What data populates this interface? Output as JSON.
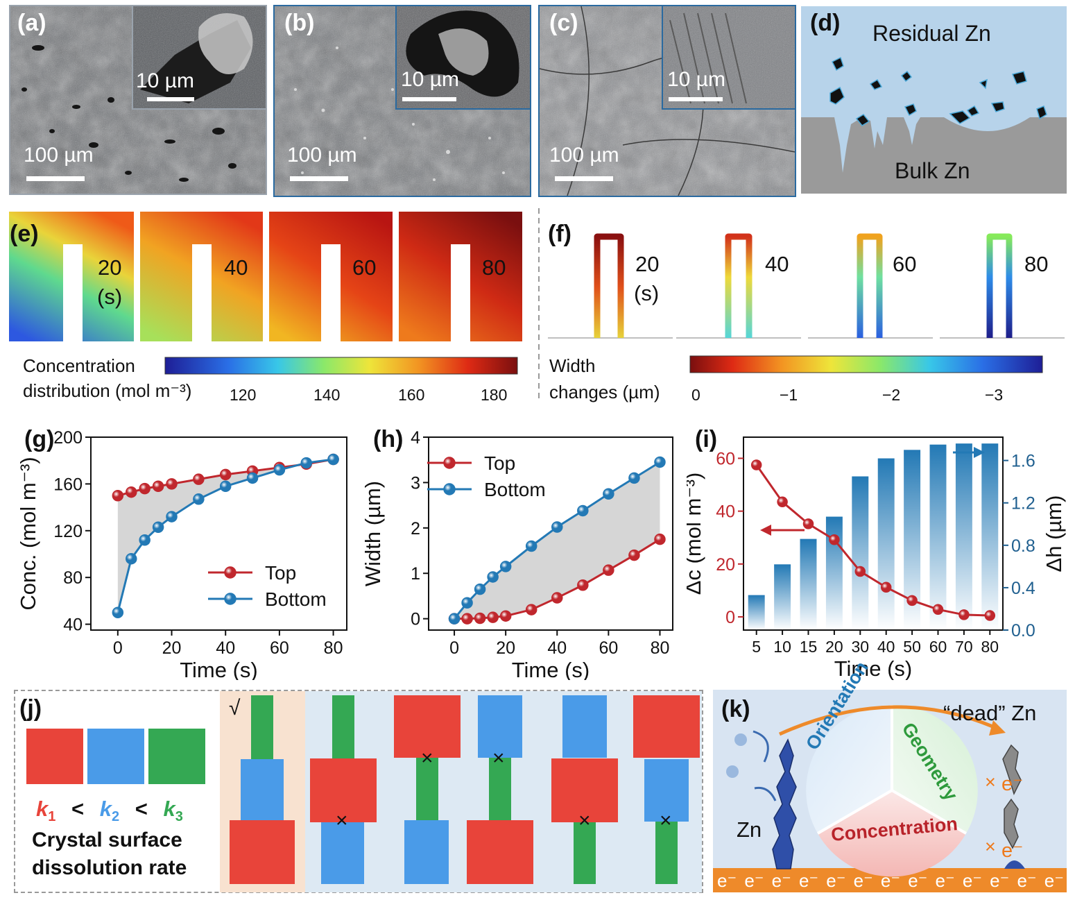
{
  "panels": {
    "a": {
      "label": "(a)",
      "scale_main": "100 µm",
      "scale_inset": "10 µm"
    },
    "b": {
      "label": "(b)",
      "scale_main": "100 µm",
      "scale_inset": "10 µm"
    },
    "c": {
      "label": "(c)",
      "scale_main": "100 µm",
      "scale_inset": "10 µm"
    },
    "d": {
      "label": "(d)",
      "top": "Residual Zn",
      "bottom": "Bulk Zn"
    },
    "e": {
      "label": "(e)",
      "times": [
        "20",
        "40",
        "60",
        "80"
      ],
      "unit": "(s)",
      "colorbar_title_1": "Concentration",
      "colorbar_title_2": "distribution (mol m⁻³)",
      "ticks": [
        "120",
        "140",
        "160",
        "180"
      ]
    },
    "f": {
      "label": "(f)",
      "times": [
        "20",
        "40",
        "60",
        "80"
      ],
      "unit": "(s)",
      "colorbar_title_1": "Width",
      "colorbar_title_2": "changes  (µm)",
      "ticks": [
        "0",
        "−1",
        "−2",
        "−3"
      ]
    },
    "g": {
      "label": "(g)"
    },
    "h": {
      "label": "(h)"
    },
    "i": {
      "label": "(i)"
    },
    "j": {
      "label": "(j)",
      "k1": "k",
      "k1sub": "1",
      "lt": "<",
      "k2": "k",
      "k2sub": "2",
      "k3": "k",
      "k3sub": "3",
      "caption_1": "Crystal surface",
      "caption_2": "dissolution rate",
      "check": "√",
      "cross": "×"
    },
    "k": {
      "label": "(k)",
      "dead": "“dead” Zn",
      "zn": "Zn",
      "electron": "e⁻",
      "cross": "×",
      "segments": [
        "Orientation",
        "Geometry",
        "Concentration"
      ]
    }
  },
  "colors": {
    "red": "#c0272d",
    "blue": "#2379b5",
    "sq_red": "#e8443a",
    "sq_blue": "#4a9be8",
    "sq_green": "#34a853"
  },
  "chart_data": [
    {
      "id": "g",
      "type": "line",
      "xlabel": "Time (s)",
      "ylabel": "Conc. (mol m⁻³)",
      "xlim": [
        -10,
        85
      ],
      "ylim": [
        35,
        200
      ],
      "xticks": [
        0,
        20,
        40,
        60,
        80
      ],
      "yticks": [
        40,
        80,
        120,
        160,
        200
      ],
      "legend_position": "bottom-right",
      "fill_between": true,
      "series": [
        {
          "name": "Top",
          "color": "#c0272d",
          "x": [
            0,
            5,
            10,
            15,
            20,
            30,
            40,
            50,
            60,
            70,
            80
          ],
          "y": [
            150,
            153,
            156,
            158,
            160,
            164,
            168,
            171,
            174,
            177,
            181
          ]
        },
        {
          "name": "Bottom",
          "color": "#2379b5",
          "x": [
            0,
            5,
            10,
            15,
            20,
            30,
            40,
            50,
            60,
            70,
            80
          ],
          "y": [
            50,
            96,
            112,
            123,
            132,
            147,
            158,
            165,
            172,
            178,
            181
          ]
        }
      ]
    },
    {
      "id": "h",
      "type": "line",
      "xlabel": "Time (s)",
      "ylabel": "Width  (µm)",
      "xlim": [
        -10,
        85
      ],
      "ylim": [
        -0.25,
        4
      ],
      "xticks": [
        0,
        20,
        40,
        60,
        80
      ],
      "yticks": [
        0,
        1,
        2,
        3,
        4
      ],
      "legend_position": "top-left",
      "fill_between": true,
      "series": [
        {
          "name": "Top",
          "color": "#c0272d",
          "x": [
            0,
            5,
            10,
            15,
            20,
            30,
            40,
            50,
            60,
            70,
            80
          ],
          "y": [
            0,
            0,
            0.01,
            0.03,
            0.06,
            0.2,
            0.46,
            0.74,
            1.07,
            1.4,
            1.75
          ]
        },
        {
          "name": "Bottom",
          "color": "#2379b5",
          "x": [
            0,
            5,
            10,
            15,
            20,
            30,
            40,
            50,
            60,
            70,
            80
          ],
          "y": [
            0,
            0.35,
            0.65,
            0.92,
            1.15,
            1.6,
            2.02,
            2.38,
            2.75,
            3.1,
            3.45
          ]
        }
      ]
    },
    {
      "id": "i",
      "type": "bar",
      "xlabel": "Time (s)",
      "ylabel_left": "Δc (mol m⁻³)",
      "ylabel_right": "Δh (µm)",
      "categories": [
        "5",
        "10",
        "15",
        "20",
        "30",
        "40",
        "50",
        "60",
        "70",
        "80"
      ],
      "ylim_left": [
        -5,
        68
      ],
      "ylim_right": [
        0,
        1.82
      ],
      "yticks_left": [
        0,
        20,
        40,
        60
      ],
      "yticks_right": [
        0.0,
        0.4,
        0.8,
        1.2,
        1.6
      ],
      "bars": {
        "axis": "right",
        "color": "#2379b5",
        "values": [
          0.33,
          0.62,
          0.86,
          1.07,
          1.45,
          1.62,
          1.7,
          1.75,
          1.76,
          1.76
        ]
      },
      "line": {
        "axis": "left",
        "color": "#c0272d",
        "values": [
          57.5,
          43.5,
          35.2,
          29.2,
          17.2,
          11.2,
          6.2,
          2.8,
          0.8,
          0.5
        ]
      }
    }
  ]
}
